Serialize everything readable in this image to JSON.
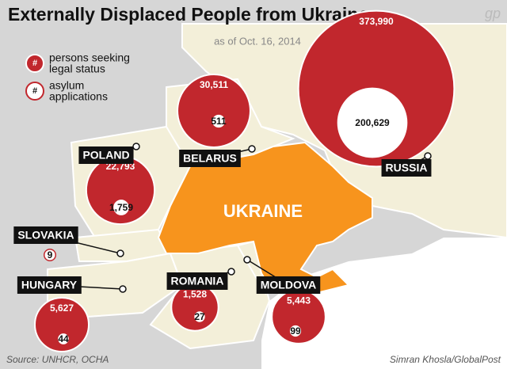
{
  "header": {
    "title": "Externally Displaced People from Ukraine",
    "subtitle": "as of Oct. 16, 2014",
    "logo": "gp"
  },
  "legend": {
    "symbol": "#",
    "seeking": [
      "persons seeking",
      "legal status"
    ],
    "asylum": [
      "asylum",
      "applications"
    ]
  },
  "map_label": "UKRAINE",
  "countries": [
    {
      "name": "RUSSIA",
      "seeking": 373990,
      "seeking_label": "373,990",
      "asylum": 200629,
      "asylum_label": "200,629"
    },
    {
      "name": "BELARUS",
      "seeking": 30511,
      "seeking_label": "30,511",
      "asylum": 511,
      "asylum_label": "511"
    },
    {
      "name": "POLAND",
      "seeking": 22793,
      "seeking_label": "22,793",
      "asylum": 1759,
      "asylum_label": "1,759"
    },
    {
      "name": "SLOVAKIA",
      "seeking": null,
      "seeking_label": null,
      "asylum": 9,
      "asylum_label": "9"
    },
    {
      "name": "HUNGARY",
      "seeking": 5627,
      "seeking_label": "5,627",
      "asylum": 44,
      "asylum_label": "44"
    },
    {
      "name": "ROMANIA",
      "seeking": 1528,
      "seeking_label": "1,528",
      "asylum": 27,
      "asylum_label": "27"
    },
    {
      "name": "MOLDOVA",
      "seeking": 5443,
      "seeking_label": "5,443",
      "asylum": 99,
      "asylum_label": "99"
    }
  ],
  "footer": {
    "source": "Source: UNHCR, OCHA",
    "credit": "Simran Khosla/GlobalPost"
  }
}
